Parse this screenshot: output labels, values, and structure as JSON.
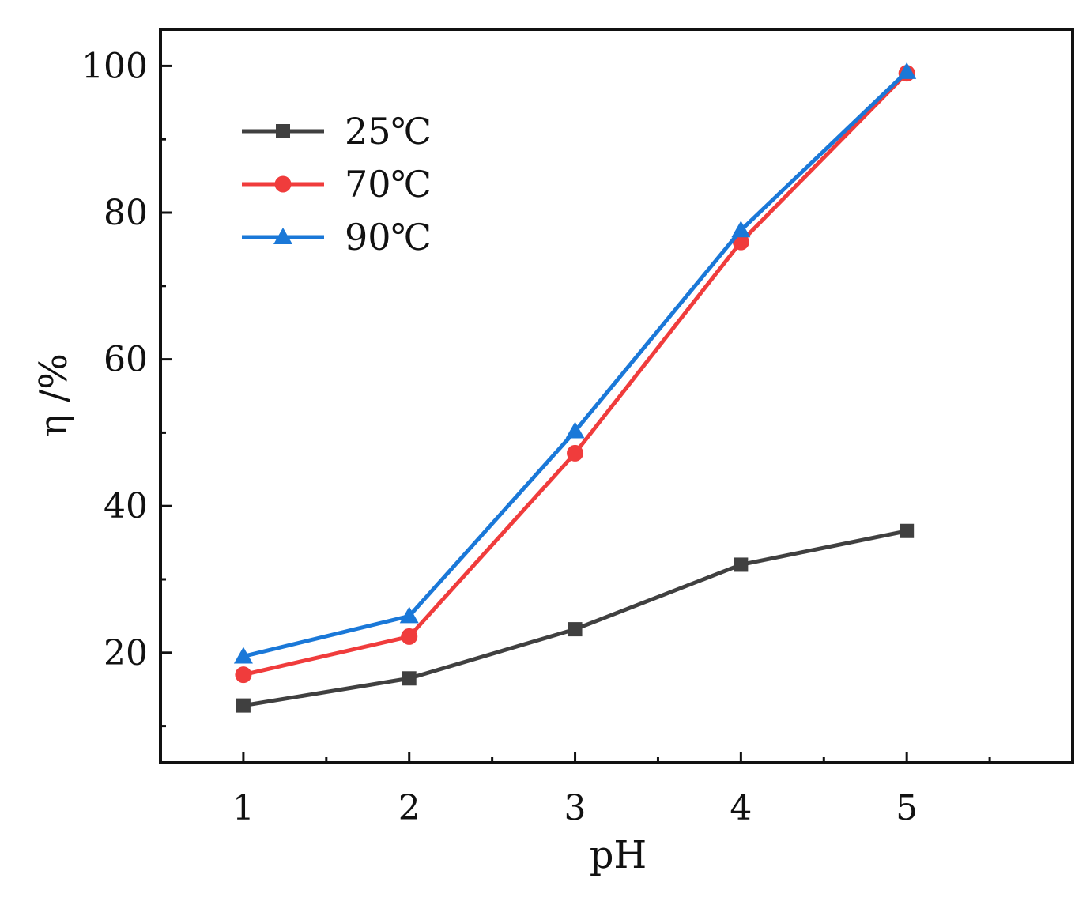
{
  "chart_data": {
    "type": "line",
    "title": "",
    "xlabel": "pH",
    "ylabel": "η /%",
    "x": [
      1,
      2,
      3,
      4,
      5
    ],
    "xlim": [
      0.5,
      6.0
    ],
    "ylim": [
      5,
      105
    ],
    "xticks": [
      1,
      2,
      3,
      4,
      5
    ],
    "xtick_labels": [
      "1",
      "2",
      "3",
      "4",
      "5"
    ],
    "yticks": [
      20,
      40,
      60,
      80,
      100
    ],
    "ytick_labels": [
      "20",
      "40",
      "60",
      "80",
      "100"
    ],
    "legend_position": "top-left",
    "grid": false,
    "series": [
      {
        "name": "25℃",
        "color": "#404040",
        "marker": "square",
        "values": [
          12.8,
          16.5,
          23.2,
          32.0,
          36.6
        ]
      },
      {
        "name": "70℃",
        "color": "#f03c3c",
        "marker": "circle",
        "values": [
          17.0,
          22.2,
          47.2,
          76.0,
          99.0
        ]
      },
      {
        "name": "90℃",
        "color": "#1a78d8",
        "marker": "triangle",
        "values": [
          19.5,
          25.0,
          50.2,
          77.6,
          99.2
        ]
      }
    ]
  }
}
